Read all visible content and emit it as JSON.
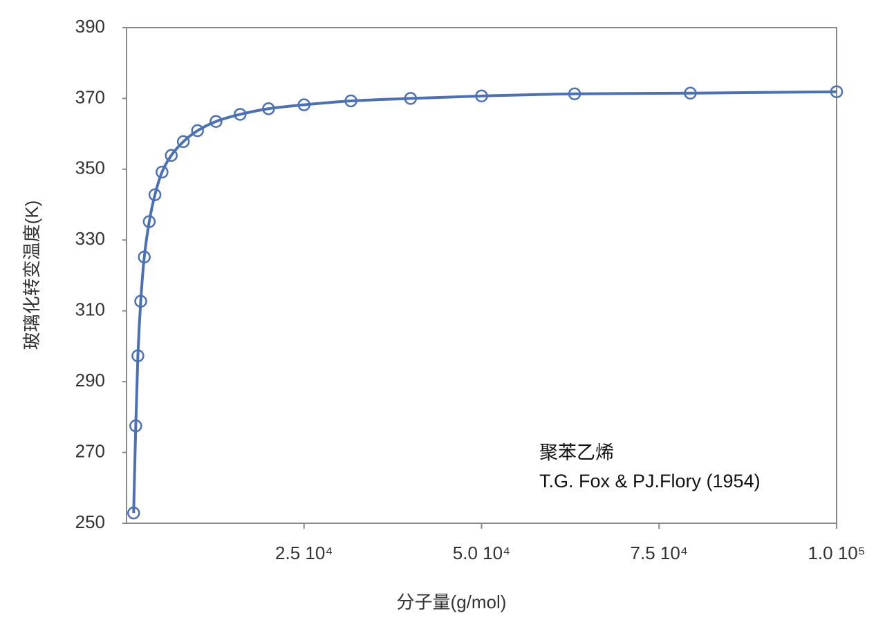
{
  "chart_data": {
    "type": "line",
    "x_label": "分子量(g/mol)",
    "y_label": "玻璃化转变温度(K)",
    "annotations": [
      "聚苯乙烯",
      "T.G. Fox & PJ.Flory (1954)"
    ],
    "color": "#4a70b6",
    "x": [
      1000,
      1300,
      1600,
      2000,
      2500,
      3200,
      4000,
      5000,
      6300,
      8000,
      10000,
      12600,
      16000,
      20000,
      25000,
      31600,
      40000,
      50000,
      63100,
      79400,
      100000
    ],
    "values": [
      252.9,
      277.5,
      297.3,
      312.7,
      325.2,
      335.2,
      342.8,
      349.2,
      353.9,
      357.8,
      360.9,
      363.5,
      365.5,
      367.1,
      368.2,
      369.3,
      370.0,
      370.7,
      371.3,
      371.5,
      371.9
    ],
    "xlim": [
      0,
      100000
    ],
    "xticks": [
      {
        "value": 25000,
        "label": "2.5 10⁴"
      },
      {
        "value": 50000,
        "label": "5.0 10⁴"
      },
      {
        "value": 75000,
        "label": "7.5 10⁴"
      },
      {
        "value": 100000,
        "label": "1.0 10⁵"
      }
    ],
    "ylim": [
      250,
      390
    ],
    "yticks": [
      250,
      270,
      290,
      310,
      330,
      350,
      370,
      390
    ]
  }
}
